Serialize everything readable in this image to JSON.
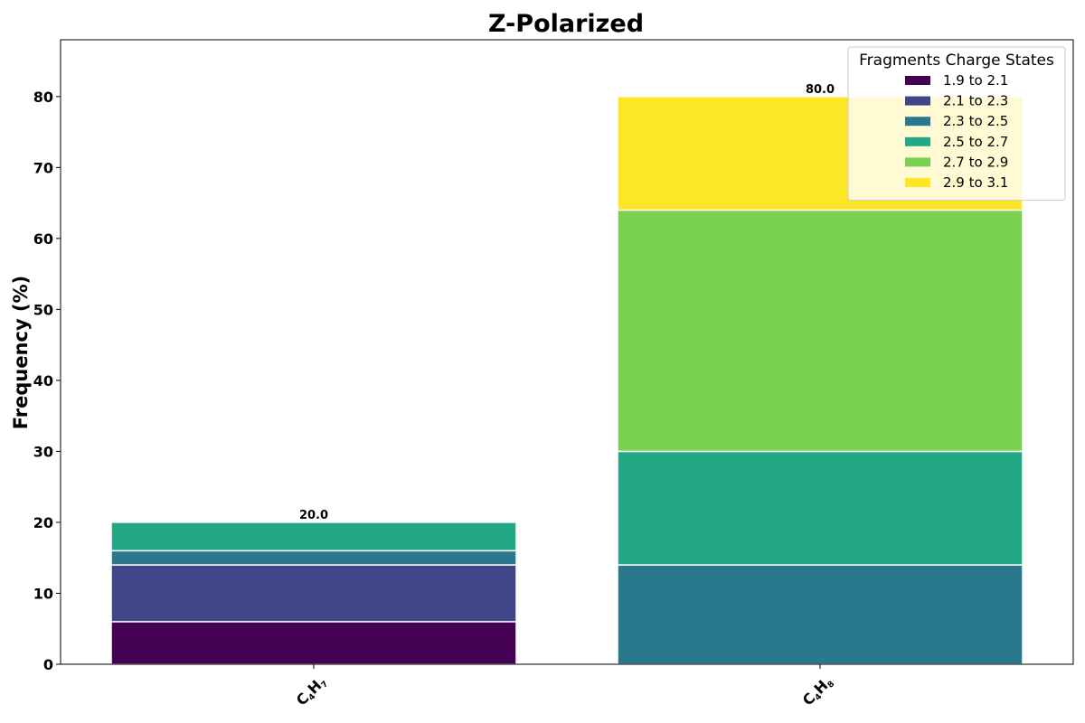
{
  "chart_data": {
    "type": "bar",
    "stacked": true,
    "title": "Z-Polarized",
    "xlabel": "",
    "ylabel": "Frequency (%)",
    "ylim": [
      0,
      88
    ],
    "yticks": [
      0,
      10,
      20,
      30,
      40,
      50,
      60,
      70,
      80
    ],
    "categories": [
      {
        "base": "C",
        "sub1": "4",
        "mid": "H",
        "sub2": "7"
      },
      {
        "base": "C",
        "sub1": "4",
        "mid": "H",
        "sub2": "8"
      }
    ],
    "legend": {
      "title": "Fragments Charge States",
      "placement": "top-right"
    },
    "series": [
      {
        "name": "1.9 to 2.1",
        "color": "#440154",
        "values": [
          6,
          0
        ]
      },
      {
        "name": "2.1 to 2.3",
        "color": "#414487",
        "values": [
          8,
          0
        ]
      },
      {
        "name": "2.3 to 2.5",
        "color": "#2a788e",
        "values": [
          2,
          14
        ]
      },
      {
        "name": "2.5 to 2.7",
        "color": "#22a884",
        "values": [
          4,
          16
        ]
      },
      {
        "name": "2.7 to 2.9",
        "color": "#7ad151",
        "values": [
          0,
          34
        ]
      },
      {
        "name": "2.9 to 3.1",
        "color": "#fde725",
        "values": [
          0,
          16
        ]
      }
    ],
    "totals": [
      "20.0",
      "80.0"
    ],
    "grid": false
  }
}
